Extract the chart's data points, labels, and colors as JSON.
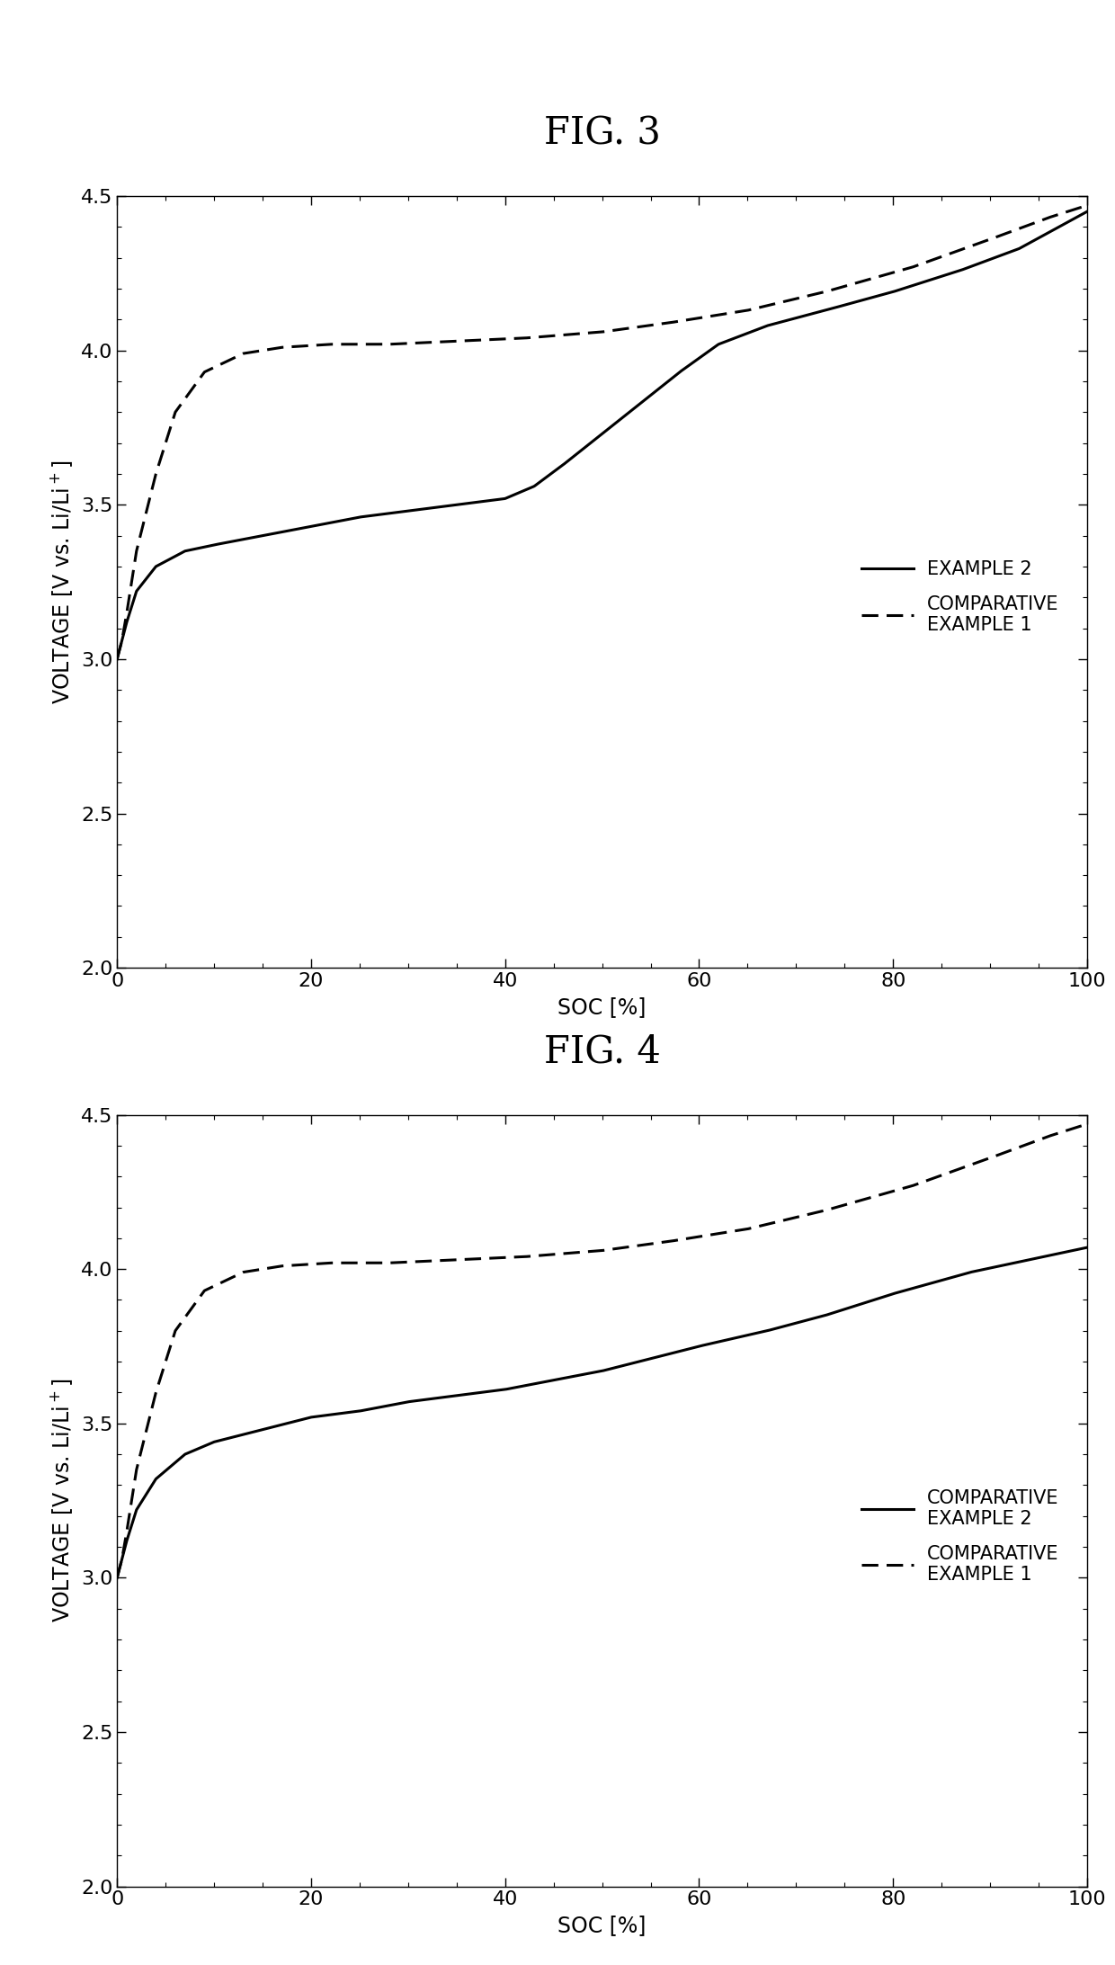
{
  "fig3_title": "FIG. 3",
  "fig4_title": "FIG. 4",
  "xlabel": "SOC [%]",
  "xlim": [
    0,
    100
  ],
  "ylim": [
    2.0,
    4.5
  ],
  "yticks": [
    2.0,
    2.5,
    3.0,
    3.5,
    4.0,
    4.5
  ],
  "xticks": [
    0,
    20,
    40,
    60,
    80,
    100
  ],
  "fig3_legend1": "EXAMPLE 2",
  "fig3_legend2": "COMPARATIVE\nEXAMPLE 1",
  "fig4_legend1": "COMPARATIVE\nEXAMPLE 2",
  "fig4_legend2": "COMPARATIVE\nEXAMPLE 1",
  "line_color": "#000000",
  "bg_color": "#ffffff",
  "title_fontsize": 30,
  "label_fontsize": 17,
  "tick_fontsize": 16,
  "legend_fontsize": 15
}
